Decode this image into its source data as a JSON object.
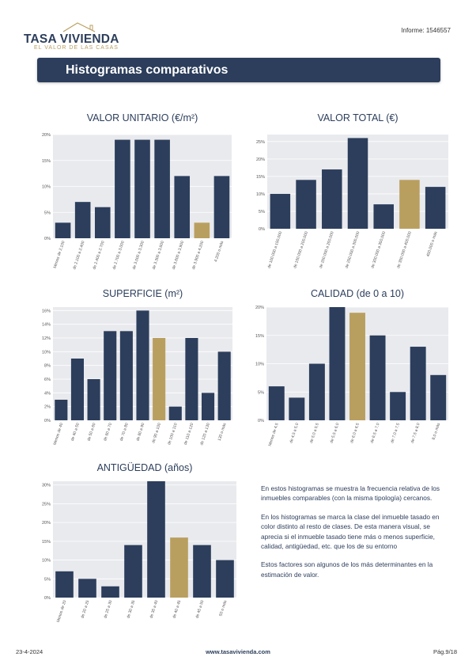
{
  "header": {
    "logo_name": "TASA VIVIENDA",
    "logo_tagline": "EL VALOR DE LAS CASAS",
    "report_id": "Informe: 1546557",
    "title": "Histogramas comparativos"
  },
  "colors": {
    "primary": "#2c3e5c",
    "highlight": "#b99f5f",
    "plot_bg": "#e9eaee",
    "grid": "#ffffff"
  },
  "chart_data": [
    {
      "id": "valor-unitario",
      "type": "bar",
      "title": "VALOR UNITARIO (€/m²)",
      "categories": [
        "Menos de 2.100",
        "de 2.100 a 2.400",
        "de 2.400 a 2.700",
        "de 2.700 a 3.000",
        "de 3.000 a 3.300",
        "de 3.300 a 3.600",
        "de 3.600 a 3.900",
        "de 3.900 a 4.200",
        "4.200 o más"
      ],
      "values": [
        3,
        7,
        6,
        19,
        19,
        19,
        12,
        3,
        12
      ],
      "highlight_index": 7,
      "yticks": [
        0,
        5,
        10,
        15,
        20
      ],
      "ytick_labels": [
        "0%",
        "5%",
        "10%",
        "15%",
        "20%"
      ],
      "ylim": [
        0,
        20
      ]
    },
    {
      "id": "valor-total",
      "type": "bar",
      "title": "VALOR TOTAL (€)",
      "categories": [
        "de 100.000 a 150.000",
        "de 150.000 a 200.000",
        "de 200.000 a 250.000",
        "de 250.000 a 300.000",
        "de 300.000 a 350.000",
        "de 350.000 a 400.000",
        "400.000 o más"
      ],
      "values": [
        10,
        14,
        17,
        26,
        7,
        14,
        12
      ],
      "highlight_index": 5,
      "yticks": [
        0,
        5,
        10,
        15,
        20,
        25
      ],
      "ytick_labels": [
        "0%",
        "5%",
        "10%",
        "15%",
        "20%",
        "25%"
      ],
      "ylim": [
        0,
        27
      ]
    },
    {
      "id": "superficie",
      "type": "bar",
      "title": "SUPERFICIE (m²)",
      "categories": [
        "Menos de 40",
        "de 40 a 50",
        "de 50 a 60",
        "de 60 a 70",
        "de 70 a 80",
        "de 80 a 90",
        "de 90 a 100",
        "de 100 a 110",
        "de 110 a 120",
        "de 120 a 130",
        "130 o más"
      ],
      "values": [
        3,
        9,
        6,
        13,
        13,
        16,
        12,
        2,
        12,
        4,
        10
      ],
      "highlight_index": 6,
      "yticks": [
        0,
        2,
        4,
        6,
        8,
        10,
        12,
        14,
        16
      ],
      "ytick_labels": [
        "0%",
        "2%",
        "4%",
        "6%",
        "8%",
        "10%",
        "12%",
        "14%",
        "16%"
      ],
      "ylim": [
        0,
        16.5
      ]
    },
    {
      "id": "calidad",
      "type": "bar",
      "title": "CALIDAD (de 0 a 10)",
      "categories": [
        "Menos de 4,5",
        "de 4,5 a 5,0",
        "de 5,0 a 5,5",
        "de 5,5 a 6,0",
        "de 6,0 a 6,5",
        "de 6,5 a 7,0",
        "de 7,0 a 7,5",
        "de 7,5 a 8,0",
        "8,0 o más"
      ],
      "values": [
        6,
        4,
        10,
        20,
        19,
        15,
        5,
        13,
        8
      ],
      "highlight_index": 4,
      "yticks": [
        0,
        5,
        10,
        15,
        20
      ],
      "ytick_labels": [
        "0%",
        "5%",
        "10%",
        "15%",
        "20%"
      ],
      "ylim": [
        0,
        20
      ]
    },
    {
      "id": "antiguedad",
      "type": "bar",
      "title": "ANTIGÜEDAD (años)",
      "categories": [
        "Menos de 20",
        "de 20 a 25",
        "de 25 a 30",
        "de 30 a 35",
        "de 35 a 40",
        "de 40 a 45",
        "de 45 a 50",
        "50 o más"
      ],
      "values": [
        7,
        5,
        3,
        14,
        31,
        16,
        14,
        10
      ],
      "highlight_index": 5,
      "yticks": [
        0,
        5,
        10,
        15,
        20,
        25,
        30
      ],
      "ytick_labels": [
        "0%",
        "5%",
        "10%",
        "15%",
        "20%",
        "25%",
        "30%"
      ],
      "ylim": [
        0,
        31
      ]
    }
  ],
  "explanation": {
    "p1": "En estos histogramas se muestra la frecuencia relativa de los inmuebles comparables (con la misma tipología) cercanos.",
    "p2": "En los histogramas se marca la clase del inmueble tasado en color distinto al resto de clases. De esta manera visual, se aprecia si el inmueble tasado tiene más o menos superficie, calidad, antigüedad, etc. que los de su entorno",
    "p3": "Estos factores son algunos de los más determinantes en la estimación de valor."
  },
  "footer": {
    "date": "23-4-2024",
    "url": "www.tasavivienda.com",
    "page": "Pág.9/18"
  }
}
